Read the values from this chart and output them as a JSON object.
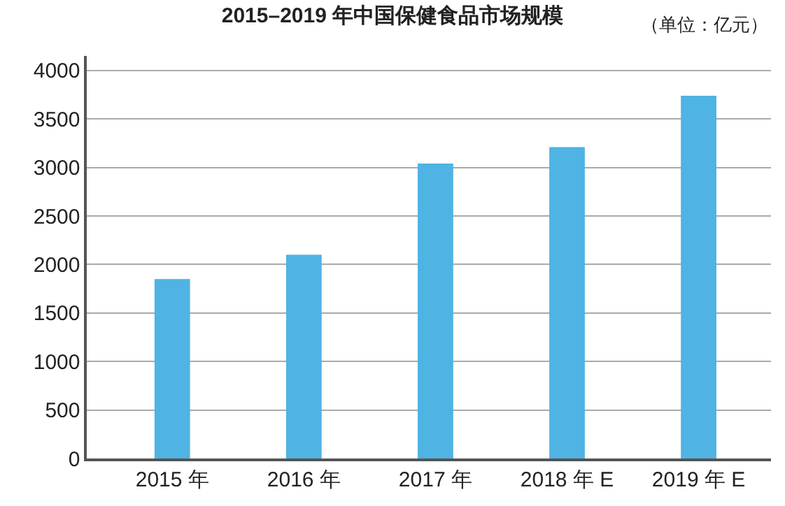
{
  "chart_data": {
    "type": "bar",
    "title": "2015–2019 年中国保健食品市场规模",
    "annotations": [
      "（单位：亿元）"
    ],
    "categories": [
      "2015 年",
      "2016 年",
      "2017 年",
      "2018 年 E",
      "2019 年 E"
    ],
    "series": [
      {
        "color": "#4fb3e3",
        "values": [
          1850,
          2100,
          3040,
          3210,
          3740
        ]
      }
    ],
    "ylim": [
      0,
      4150
    ],
    "yticks": [
      0,
      500,
      1000,
      1500,
      2000,
      2500,
      3000,
      3500,
      4000
    ],
    "grid": "y"
  }
}
